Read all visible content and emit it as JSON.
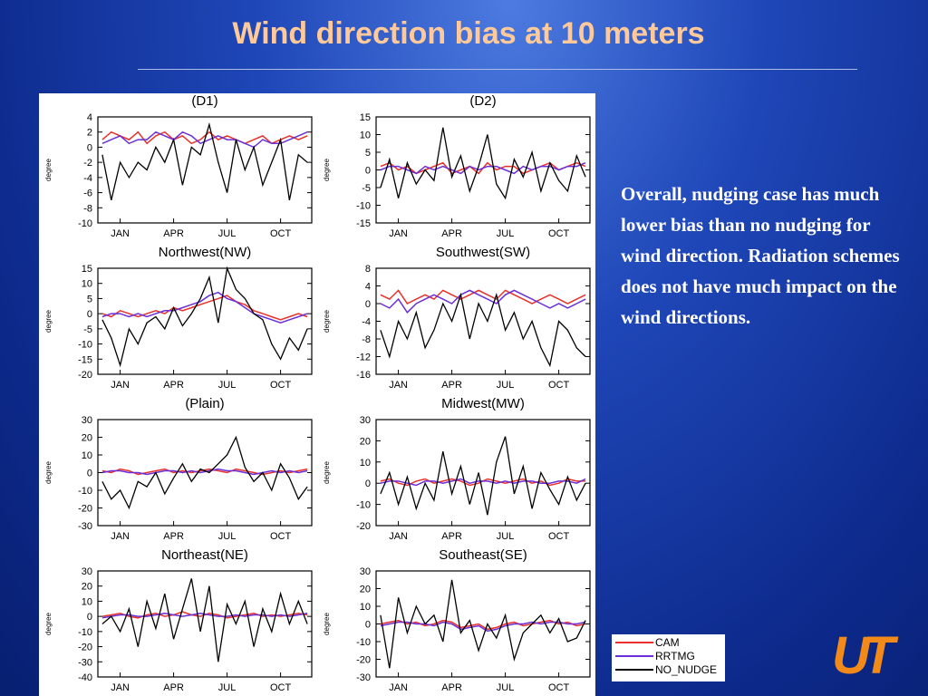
{
  "slide": {
    "title": "Wind direction bias at 10 meters",
    "body": "Overall, nudging case has much lower bias than no nudging for wind direction. Radiation schemes does not have much impact on the wind directions.",
    "logo": "UT"
  },
  "chart_data": [
    {
      "type": "line",
      "title": "(D1)",
      "ylabel": "degree",
      "ylim": [
        -10,
        4
      ],
      "yticks": [
        -10,
        -8,
        -6,
        -4,
        -2,
        0,
        2,
        4
      ],
      "categories": [
        null,
        null,
        "JAN",
        null,
        null,
        null,
        null,
        null,
        "APR",
        null,
        null,
        null,
        null,
        null,
        "JUL",
        null,
        null,
        null,
        null,
        null,
        "OCT",
        null,
        null,
        null
      ],
      "series": [
        {
          "name": "CAM",
          "color": "#e8312b",
          "values": [
            1,
            2,
            1.5,
            1,
            2,
            0.5,
            1.5,
            2,
            1,
            1.5,
            0.5,
            1,
            2,
            1,
            1.5,
            1,
            0.5,
            1,
            1.5,
            0.5,
            1,
            1.5,
            1,
            1.5
          ]
        },
        {
          "name": "RRTMG",
          "color": "#6a2fd8",
          "values": [
            0.5,
            1,
            1.5,
            0.5,
            1,
            1,
            2,
            1.5,
            1,
            2,
            1.5,
            0.5,
            1,
            1.5,
            1,
            1,
            0.5,
            0,
            1,
            0.5,
            0.5,
            1,
            1.5,
            2
          ]
        },
        {
          "name": "NO_NUDGE",
          "color": "#000000",
          "values": [
            -1,
            -7,
            -2,
            -4,
            -2,
            -3,
            0,
            -2,
            1,
            -5,
            0,
            -1,
            3,
            -2,
            -6,
            1,
            -3,
            0,
            -5,
            -2,
            1,
            -7,
            -1,
            -2
          ]
        }
      ]
    },
    {
      "type": "line",
      "title": "(D2)",
      "ylabel": "degree",
      "ylim": [
        -15,
        15
      ],
      "yticks": [
        -15,
        -10,
        -5,
        0,
        5,
        10,
        15
      ],
      "categories": [
        null,
        null,
        "JAN",
        null,
        null,
        null,
        null,
        null,
        "APR",
        null,
        null,
        null,
        null,
        null,
        "JUL",
        null,
        null,
        null,
        null,
        null,
        "OCT",
        null,
        null,
        null
      ],
      "series": [
        {
          "name": "CAM",
          "color": "#e8312b",
          "values": [
            1,
            2,
            0,
            1,
            -1,
            0,
            1,
            2,
            -1,
            0,
            1,
            -1,
            2,
            0,
            1,
            1,
            -1,
            0,
            1,
            2,
            0,
            1,
            2,
            1
          ]
        },
        {
          "name": "RRTMG",
          "color": "#6a2fd8",
          "values": [
            0,
            1,
            1,
            0,
            -1,
            1,
            0,
            1,
            0,
            -1,
            1,
            0,
            1,
            1,
            0,
            -1,
            1,
            0,
            1,
            1,
            0,
            1,
            1,
            2
          ]
        },
        {
          "name": "NO_NUDGE",
          "color": "#000000",
          "values": [
            -5,
            3,
            -8,
            2,
            -4,
            0,
            -3,
            12,
            -2,
            4,
            -6,
            1,
            10,
            -4,
            -8,
            3,
            -2,
            5,
            -6,
            2,
            -3,
            -6,
            4,
            -2
          ]
        }
      ]
    },
    {
      "type": "line",
      "title": "Northwest(NW)",
      "ylabel": "degree",
      "ylim": [
        -20,
        15
      ],
      "yticks": [
        -20,
        -15,
        -10,
        -5,
        0,
        5,
        10,
        15
      ],
      "categories": [
        null,
        null,
        "JAN",
        null,
        null,
        null,
        null,
        null,
        "APR",
        null,
        null,
        null,
        null,
        null,
        "JUL",
        null,
        null,
        null,
        null,
        null,
        "OCT",
        null,
        null,
        null
      ],
      "series": [
        {
          "name": "CAM",
          "color": "#e8312b",
          "values": [
            0,
            -1,
            1,
            0,
            -1,
            0,
            1,
            0,
            2,
            1,
            2,
            3,
            4,
            5,
            6,
            4,
            3,
            1,
            0,
            -1,
            -2,
            -1,
            0,
            -1
          ]
        },
        {
          "name": "RRTMG",
          "color": "#6a2fd8",
          "values": [
            -1,
            0,
            0,
            -1,
            0,
            -1,
            0,
            1,
            1,
            2,
            3,
            4,
            6,
            7,
            5,
            4,
            2,
            0,
            -1,
            -2,
            -3,
            -2,
            -1,
            0
          ]
        },
        {
          "name": "NO_NUDGE",
          "color": "#000000",
          "values": [
            -2,
            -8,
            -17,
            -5,
            -10,
            -3,
            -1,
            -5,
            2,
            -4,
            0,
            5,
            12,
            -3,
            15,
            8,
            5,
            0,
            -2,
            -10,
            -15,
            -8,
            -12,
            -5
          ]
        }
      ]
    },
    {
      "type": "line",
      "title": "Southwest(SW)",
      "ylabel": "degree",
      "ylim": [
        -16,
        8
      ],
      "yticks": [
        -16,
        -12,
        -8,
        -4,
        0,
        4,
        8
      ],
      "categories": [
        null,
        null,
        "JAN",
        null,
        null,
        null,
        null,
        null,
        "APR",
        null,
        null,
        null,
        null,
        null,
        "JUL",
        null,
        null,
        null,
        null,
        null,
        "OCT",
        null,
        null,
        null
      ],
      "series": [
        {
          "name": "CAM",
          "color": "#e8312b",
          "values": [
            2,
            1,
            3,
            0,
            1,
            2,
            1,
            3,
            2,
            1,
            2,
            3,
            2,
            1,
            3,
            2,
            1,
            0,
            1,
            2,
            1,
            0,
            1,
            2
          ]
        },
        {
          "name": "RRTMG",
          "color": "#6a2fd8",
          "values": [
            0,
            -1,
            1,
            -2,
            0,
            1,
            2,
            1,
            0,
            2,
            3,
            2,
            1,
            0,
            2,
            3,
            2,
            1,
            0,
            -1,
            0,
            -1,
            0,
            1
          ]
        },
        {
          "name": "NO_NUDGE",
          "color": "#000000",
          "values": [
            -6,
            -12,
            -4,
            -8,
            -2,
            -10,
            -6,
            0,
            -4,
            2,
            -8,
            0,
            -4,
            2,
            -6,
            -2,
            -8,
            -4,
            -10,
            -14,
            -4,
            -6,
            -10,
            -12
          ]
        }
      ]
    },
    {
      "type": "line",
      "title": "(Plain)",
      "ylabel": "degree",
      "ylim": [
        -30,
        30
      ],
      "yticks": [
        -30,
        -20,
        -10,
        0,
        10,
        20,
        30
      ],
      "categories": [
        null,
        null,
        "JAN",
        null,
        null,
        null,
        null,
        null,
        "APR",
        null,
        null,
        null,
        null,
        null,
        "JUL",
        null,
        null,
        null,
        null,
        null,
        "OCT",
        null,
        null,
        null
      ],
      "series": [
        {
          "name": "CAM",
          "color": "#e8312b",
          "values": [
            1,
            0,
            2,
            1,
            -1,
            0,
            1,
            2,
            0,
            1,
            0,
            1,
            2,
            1,
            0,
            2,
            1,
            0,
            -1,
            0,
            1,
            0,
            1,
            2
          ]
        },
        {
          "name": "RRTMG",
          "color": "#6a2fd8",
          "values": [
            0,
            1,
            1,
            0,
            0,
            -1,
            0,
            1,
            1,
            0,
            1,
            0,
            1,
            2,
            1,
            1,
            0,
            -1,
            0,
            1,
            0,
            1,
            0,
            1
          ]
        },
        {
          "name": "NO_NUDGE",
          "color": "#000000",
          "values": [
            -5,
            -15,
            -10,
            -20,
            -5,
            -8,
            0,
            -12,
            -3,
            5,
            -5,
            2,
            0,
            5,
            10,
            20,
            3,
            -5,
            0,
            -10,
            5,
            -3,
            -15,
            -8
          ]
        }
      ]
    },
    {
      "type": "line",
      "title": "Midwest(MW)",
      "ylabel": "degree",
      "ylim": [
        -20,
        30
      ],
      "yticks": [
        -20,
        -10,
        0,
        10,
        20,
        30
      ],
      "categories": [
        null,
        null,
        "JAN",
        null,
        null,
        null,
        null,
        null,
        "APR",
        null,
        null,
        null,
        null,
        null,
        "JUL",
        null,
        null,
        null,
        null,
        null,
        "OCT",
        null,
        null,
        null
      ],
      "series": [
        {
          "name": "CAM",
          "color": "#e8312b",
          "values": [
            1,
            2,
            0,
            -1,
            1,
            2,
            0,
            1,
            2,
            1,
            -1,
            0,
            2,
            1,
            0,
            1,
            2,
            0,
            1,
            -1,
            0,
            2,
            1,
            1
          ]
        },
        {
          "name": "RRTMG",
          "color": "#6a2fd8",
          "values": [
            0,
            1,
            1,
            0,
            -1,
            1,
            1,
            0,
            1,
            2,
            0,
            1,
            1,
            0,
            1,
            0,
            1,
            1,
            0,
            0,
            1,
            1,
            0,
            2
          ]
        },
        {
          "name": "NO_NUDGE",
          "color": "#000000",
          "values": [
            -5,
            5,
            -10,
            3,
            -12,
            0,
            -8,
            15,
            -5,
            8,
            -10,
            5,
            -15,
            10,
            22,
            -5,
            8,
            -12,
            5,
            -3,
            -10,
            3,
            -8,
            0
          ]
        }
      ]
    },
    {
      "type": "line",
      "title": "Northeast(NE)",
      "ylabel": "degree",
      "ylim": [
        -40,
        30
      ],
      "yticks": [
        -40,
        -30,
        -20,
        -10,
        0,
        10,
        20,
        30
      ],
      "categories": [
        null,
        null,
        "JAN",
        null,
        null,
        null,
        null,
        null,
        "APR",
        null,
        null,
        null,
        null,
        null,
        "JUL",
        null,
        null,
        null,
        null,
        null,
        "OCT",
        null,
        null,
        null
      ],
      "series": [
        {
          "name": "CAM",
          "color": "#e8312b",
          "values": [
            0,
            1,
            2,
            0,
            -1,
            1,
            2,
            0,
            1,
            3,
            1,
            0,
            2,
            1,
            -1,
            0,
            1,
            2,
            0,
            1,
            0,
            1,
            2,
            1
          ]
        },
        {
          "name": "RRTMG",
          "color": "#6a2fd8",
          "values": [
            -1,
            0,
            1,
            1,
            0,
            0,
            1,
            2,
            1,
            0,
            1,
            2,
            1,
            0,
            0,
            1,
            0,
            1,
            1,
            0,
            1,
            0,
            1,
            2
          ]
        },
        {
          "name": "NO_NUDGE",
          "color": "#000000",
          "values": [
            -5,
            0,
            -10,
            5,
            -20,
            10,
            -8,
            15,
            -15,
            5,
            25,
            -10,
            20,
            -30,
            8,
            -5,
            10,
            -20,
            5,
            -10,
            15,
            -5,
            10,
            -5
          ]
        }
      ]
    },
    {
      "type": "line",
      "title": "Southeast(SE)",
      "ylabel": "degree",
      "ylim": [
        -30,
        30
      ],
      "yticks": [
        -30,
        -20,
        -10,
        0,
        10,
        20,
        30
      ],
      "categories": [
        null,
        null,
        "JAN",
        null,
        null,
        null,
        null,
        null,
        "APR",
        null,
        null,
        null,
        null,
        null,
        "JUL",
        null,
        null,
        null,
        null,
        null,
        "OCT",
        null,
        null,
        null
      ],
      "series": [
        {
          "name": "CAM",
          "color": "#e8312b",
          "values": [
            0,
            1,
            2,
            0,
            1,
            -1,
            0,
            2,
            1,
            -2,
            -1,
            0,
            -3,
            -2,
            0,
            1,
            -1,
            0,
            1,
            2,
            0,
            1,
            -1,
            0
          ]
        },
        {
          "name": "RRTMG",
          "color": "#6a2fd8",
          "values": [
            -1,
            0,
            1,
            1,
            0,
            0,
            -1,
            1,
            0,
            -3,
            -2,
            -1,
            -4,
            -3,
            -1,
            0,
            0,
            1,
            0,
            1,
            1,
            0,
            0,
            1
          ]
        },
        {
          "name": "NO_NUDGE",
          "color": "#000000",
          "values": [
            5,
            -25,
            15,
            -5,
            10,
            0,
            5,
            -10,
            25,
            -5,
            2,
            -15,
            0,
            -8,
            5,
            -20,
            -5,
            0,
            5,
            -5,
            3,
            -10,
            -8,
            2
          ]
        }
      ]
    }
  ]
}
